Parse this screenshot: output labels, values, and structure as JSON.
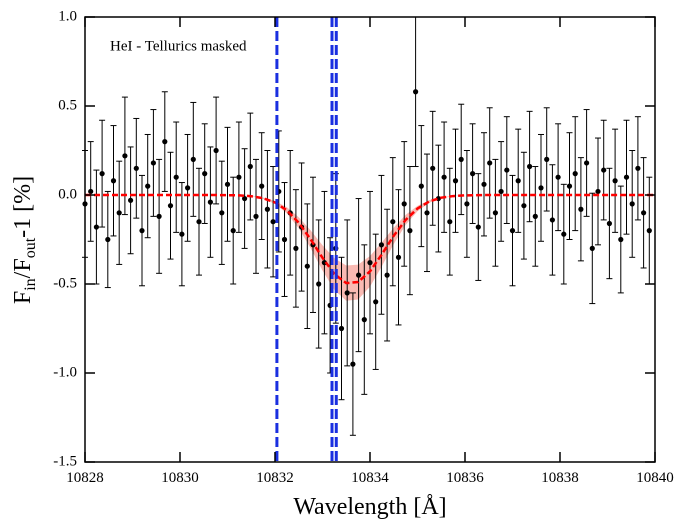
{
  "chart_data": {
    "type": "scatter",
    "annotation": "HeI - Tellurics masked",
    "xlabel": "Wavelength [Å]",
    "ylabel": [
      "F",
      "in",
      "/F",
      "out",
      "-1 [%]"
    ],
    "xlim": [
      10828,
      10840
    ],
    "xticks": [
      10828,
      10830,
      10832,
      10834,
      10836,
      10838,
      10840
    ],
    "ylim": [
      -1.5,
      1.0
    ],
    "yticks": [
      {
        "value": -1.5,
        "label": "-1.5"
      },
      {
        "value": -1,
        "label": "-1.0"
      },
      {
        "value": -0.5,
        "label": "-0.5"
      },
      {
        "value": 0,
        "label": "0.0"
      },
      {
        "value": 0.5,
        "label": "0.5"
      },
      {
        "value": 1,
        "label": "1.0"
      }
    ],
    "vlines": [
      10832.04,
      10833.2,
      10833.29
    ],
    "vline_color": "#1a2fe0",
    "points": {
      "color": "#000000",
      "x": [
        10828,
        10828.12,
        10828.24,
        10828.36,
        10828.48,
        10828.6,
        10828.72,
        10828.84,
        10828.96,
        10829.08,
        10829.2,
        10829.32,
        10829.44,
        10829.56,
        10829.68,
        10829.8,
        10829.92,
        10830.04,
        10830.16,
        10830.28,
        10830.4,
        10830.52,
        10830.64,
        10830.76,
        10830.88,
        10831,
        10831.12,
        10831.24,
        10831.36,
        10831.48,
        10831.6,
        10831.72,
        10831.84,
        10831.96,
        10832.08,
        10832.2,
        10832.32,
        10832.44,
        10832.56,
        10832.68,
        10832.8,
        10832.92,
        10833.04,
        10833.16,
        10833.28,
        10833.4,
        10833.52,
        10833.64,
        10833.76,
        10833.88,
        10834,
        10834.12,
        10834.24,
        10834.36,
        10834.48,
        10834.6,
        10834.72,
        10834.84,
        10834.96,
        10835.08,
        10835.2,
        10835.32,
        10835.44,
        10835.56,
        10835.68,
        10835.8,
        10835.92,
        10836.04,
        10836.16,
        10836.28,
        10836.4,
        10836.52,
        10836.64,
        10836.76,
        10836.88,
        10837,
        10837.12,
        10837.24,
        10837.36,
        10837.48,
        10837.6,
        10837.72,
        10837.84,
        10837.96,
        10838.08,
        10838.2,
        10838.32,
        10838.44,
        10838.56,
        10838.68,
        10838.8,
        10838.92,
        10839.04,
        10839.16,
        10839.28,
        10839.4,
        10839.52,
        10839.64,
        10839.76,
        10839.88
      ],
      "values": [
        -0.05,
        0.02,
        -0.18,
        0.12,
        -0.25,
        0.08,
        -0.1,
        0.22,
        -0.03,
        0.15,
        -0.2,
        0.05,
        0.18,
        -0.12,
        0.3,
        -0.06,
        0.1,
        -0.22,
        0.04,
        0.2,
        -0.15,
        0.12,
        -0.04,
        0.25,
        -0.1,
        0.06,
        -0.2,
        0.1,
        -0.02,
        0.16,
        -0.12,
        0.05,
        -0.08,
        -0.15,
        0.02,
        -0.25,
        -0.1,
        -0.3,
        -0.18,
        -0.4,
        -0.28,
        -0.5,
        -0.38,
        -0.62,
        -0.3,
        -0.75,
        -0.55,
        -0.95,
        -0.45,
        -0.7,
        -0.38,
        -0.6,
        -0.28,
        -0.45,
        -0.15,
        -0.35,
        -0.05,
        -0.2,
        0.58,
        0.05,
        -0.1,
        0.15,
        -0.02,
        0.1,
        -0.15,
        0.08,
        0.2,
        -0.05,
        0.12,
        -0.18,
        0.06,
        0.18,
        -0.1,
        0.02,
        0.14,
        -0.2,
        0.08,
        -0.06,
        0.16,
        -0.12,
        0.04,
        0.2,
        -0.14,
        0.1,
        -0.22,
        0.05,
        0.12,
        -0.08,
        0.18,
        -0.3,
        0.02,
        0.14,
        -0.16,
        0.08,
        -0.25,
        0.1,
        -0.05,
        0.15,
        -0.1,
        -0.2
      ],
      "errors": [
        0.3,
        0.28,
        0.32,
        0.3,
        0.27,
        0.31,
        0.29,
        0.33,
        0.3,
        0.28,
        0.31,
        0.29,
        0.3,
        0.32,
        0.28,
        0.3,
        0.31,
        0.29,
        0.3,
        0.32,
        0.3,
        0.28,
        0.31,
        0.3,
        0.29,
        0.32,
        0.3,
        0.31,
        0.28,
        0.3,
        0.32,
        0.3,
        0.33,
        0.31,
        0.34,
        0.32,
        0.35,
        0.33,
        0.36,
        0.35,
        0.38,
        0.36,
        0.4,
        0.38,
        0.42,
        0.4,
        0.41,
        0.4,
        0.43,
        0.42,
        0.4,
        0.38,
        0.39,
        0.37,
        0.36,
        0.38,
        0.35,
        0.36,
        0.42,
        0.34,
        0.33,
        0.32,
        0.3,
        0.31,
        0.3,
        0.29,
        0.31,
        0.3,
        0.28,
        0.3,
        0.29,
        0.31,
        0.3,
        0.28,
        0.3,
        0.31,
        0.29,
        0.3,
        0.31,
        0.28,
        0.3,
        0.29,
        0.31,
        0.3,
        0.28,
        0.3,
        0.32,
        0.29,
        0.3,
        0.31,
        0.3,
        0.28,
        0.31,
        0.29,
        0.3,
        0.32,
        0.3,
        0.29,
        0.31,
        0.3
      ]
    },
    "fit": {
      "color": "#ff0000",
      "band_color": "#f7a39a",
      "x": [
        10828,
        10830,
        10830.25,
        10830.5,
        10830.75,
        10831,
        10831.25,
        10831.5,
        10831.75,
        10832,
        10832.25,
        10832.5,
        10832.75,
        10833,
        10833.25,
        10833.5,
        10833.75,
        10834,
        10834.25,
        10834.5,
        10834.75,
        10835,
        10835.25,
        10835.5,
        10835.75,
        10836,
        10836.25,
        10836.5,
        10836.75,
        10837,
        10840
      ],
      "values": [
        0,
        0,
        0,
        0,
        0,
        -0.001,
        -0.002,
        -0.007,
        -0.018,
        -0.042,
        -0.086,
        -0.156,
        -0.249,
        -0.353,
        -0.444,
        -0.495,
        -0.489,
        -0.429,
        -0.333,
        -0.229,
        -0.14,
        -0.076,
        -0.036,
        -0.015,
        -0.006,
        -0.002,
        -0.001,
        0,
        0,
        0,
        0
      ],
      "lower": [
        0,
        0,
        0,
        0,
        0,
        -0.001,
        -0.002,
        -0.008,
        -0.022,
        -0.05,
        -0.103,
        -0.187,
        -0.299,
        -0.424,
        -0.533,
        -0.594,
        -0.587,
        -0.515,
        -0.4,
        -0.275,
        -0.168,
        -0.091,
        -0.043,
        -0.018,
        -0.007,
        -0.002,
        -0.001,
        0,
        0,
        0,
        0
      ],
      "upper": [
        0,
        0,
        0,
        0,
        0,
        -0.001,
        -0.002,
        -0.006,
        -0.014,
        -0.034,
        -0.069,
        -0.125,
        -0.199,
        -0.282,
        -0.355,
        -0.396,
        -0.391,
        -0.343,
        -0.266,
        -0.183,
        -0.112,
        -0.061,
        -0.029,
        -0.012,
        -0.005,
        -0.002,
        -0.001,
        0,
        0,
        0,
        0
      ]
    }
  }
}
